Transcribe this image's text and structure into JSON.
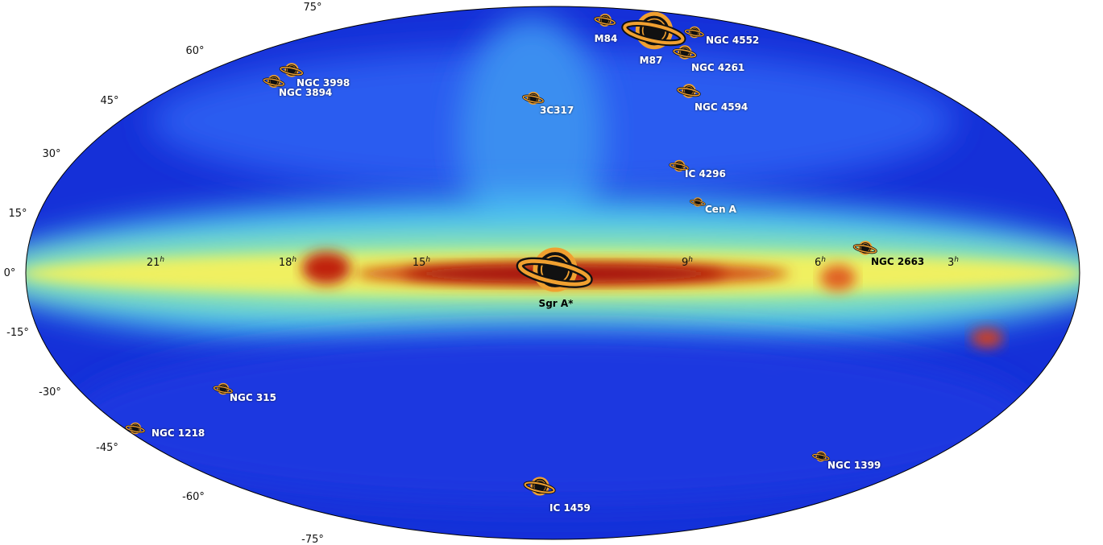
{
  "lat_labels": [
    "75°",
    "60°",
    "45°",
    "30°",
    "15°",
    "0°",
    "-15°",
    "-30°",
    "-45°",
    "-60°",
    "-75°"
  ],
  "ra_labels": [
    {
      "number": "21",
      "sup": "h"
    },
    {
      "number": "18",
      "sup": "h"
    },
    {
      "number": "15",
      "sup": "h"
    },
    {
      "number": "9",
      "sup": "h"
    },
    {
      "number": "6",
      "sup": "h"
    },
    {
      "number": "3",
      "sup": "h"
    }
  ],
  "sources": [
    {
      "name": "M84"
    },
    {
      "name": "M87"
    },
    {
      "name": "NGC 4552"
    },
    {
      "name": "NGC 4261"
    },
    {
      "name": "NGC 3998"
    },
    {
      "name": "NGC 3894"
    },
    {
      "name": "NGC 4594"
    },
    {
      "name": "3C317"
    },
    {
      "name": "IC 4296"
    },
    {
      "name": "Cen A"
    },
    {
      "name": "NGC 2663"
    },
    {
      "name": "Sgr A*"
    },
    {
      "name": "NGC 315"
    },
    {
      "name": "NGC 1218"
    },
    {
      "name": "NGC 1399"
    },
    {
      "name": "IC 1459"
    }
  ]
}
